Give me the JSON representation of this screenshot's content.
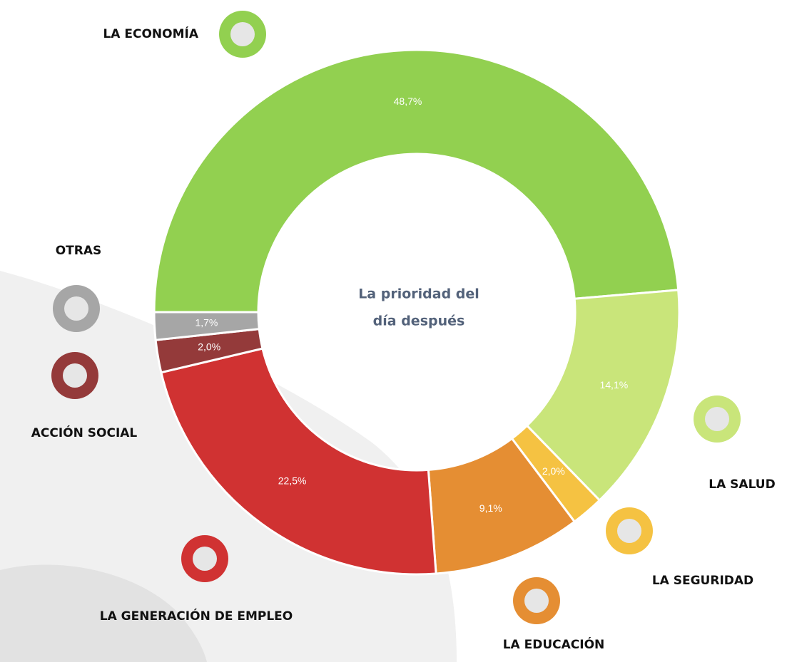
{
  "chart_data": {
    "type": "donut",
    "center_label": [
      "La prioridad del",
      "día después"
    ],
    "categories": [
      "LA ECONOMÍA",
      "LA SALUD",
      "LA SEGURIDAD",
      "LA EDUCACIÓN",
      "LA GENERACIÓN DE EMPLEO",
      "ACCIÓN SOCIAL",
      "OTRAS"
    ],
    "values": [
      48.7,
      14.1,
      2.0,
      9.1,
      22.5,
      2.0,
      1.7
    ],
    "value_labels": [
      "48,7%",
      "14,1%",
      "2,0%",
      "9,1%",
      "22,5%",
      "2,0%",
      "1,7%"
    ],
    "colors": [
      "#92d050",
      "#c9e57a",
      "#f5c242",
      "#e58e33",
      "#d03232",
      "#943a3a",
      "#a6a6a6"
    ]
  }
}
